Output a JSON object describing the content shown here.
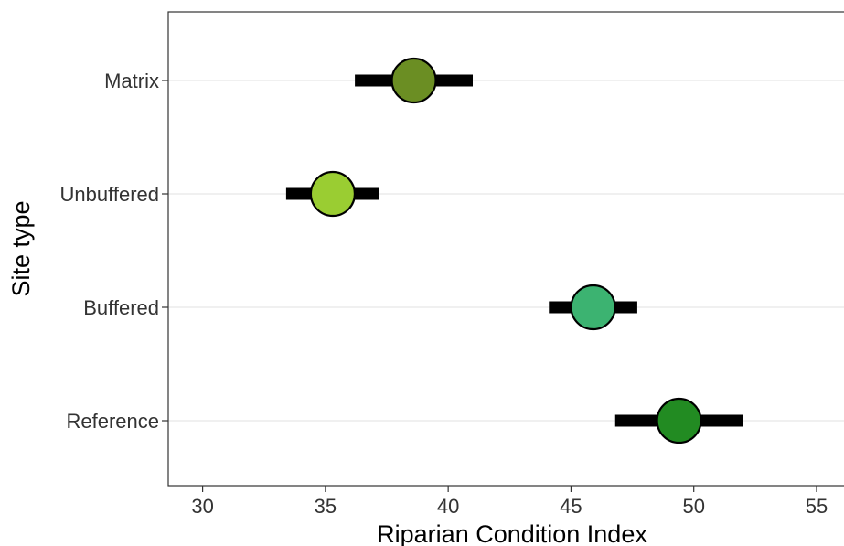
{
  "chart_data": {
    "type": "scatter",
    "xlabel": "Riparian Condition Index",
    "ylabel": "Site type",
    "xlim": [
      28.6,
      56.9
    ],
    "x_ticks": [
      30,
      35,
      40,
      45,
      50,
      55
    ],
    "x_tick_labels": [
      "30",
      "35",
      "40",
      "45",
      "50",
      "55"
    ],
    "categories": [
      "Matrix",
      "Unbuffered",
      "Buffered",
      "Reference"
    ],
    "points": [
      {
        "category": "Matrix",
        "estimate": 38.6,
        "lower": 36.2,
        "upper": 41.0,
        "color": "#6b8e23"
      },
      {
        "category": "Unbuffered",
        "estimate": 35.3,
        "lower": 33.4,
        "upper": 37.2,
        "color": "#9acd32"
      },
      {
        "category": "Buffered",
        "estimate": 45.9,
        "lower": 44.1,
        "upper": 47.7,
        "color": "#3cb371"
      },
      {
        "category": "Reference",
        "estimate": 49.4,
        "lower": 46.8,
        "upper": 52.0,
        "color": "#228b22"
      }
    ],
    "grid": "horizontal-major",
    "legend": "none"
  }
}
